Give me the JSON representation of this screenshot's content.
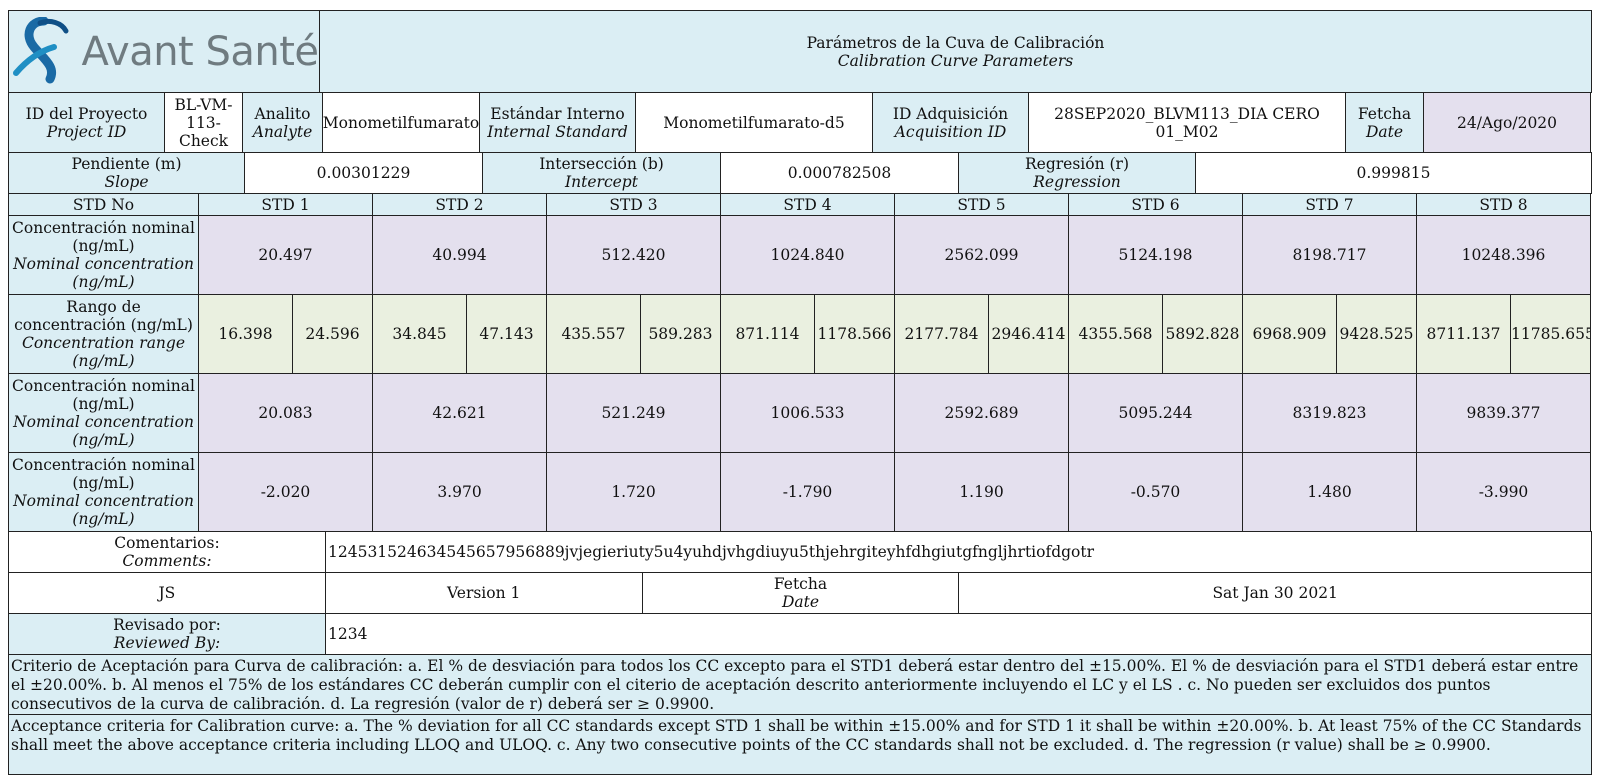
{
  "brand": {
    "logo_text": "Avant Santé",
    "logo_color": "#1a6aa5"
  },
  "title": {
    "es": "Parámetros de la Cuva de Calibración",
    "en": "Calibration Curve Parameters"
  },
  "info": {
    "project_label_es": "ID del Proyecto",
    "project_label_en": "Project ID",
    "project_value": "BL-VM-113-Check",
    "analyte_label_es": "Analito",
    "analyte_label_en": "Analyte",
    "analyte_value": "Monometilfumarato",
    "is_label_es": "Estándar Interno",
    "is_label_en": "Internal Standard",
    "is_value": "Monometilfumarato-d5",
    "acq_label_es": "ID Adquisición",
    "acq_label_en": "Acquisition ID",
    "acq_value": "28SEP2020_BLVM113_DIA CERO 01_M02",
    "date_label_es": "Fetcha",
    "date_label_en": "Date",
    "date_value": "24/Ago/2020"
  },
  "regression": {
    "slope_label_es": "Pendiente (m)",
    "slope_label_en": "Slope",
    "slope_value": "0.00301229",
    "intercept_label_es": "Intersección (b)",
    "intercept_label_en": "Intercept",
    "intercept_value": "0.000782508",
    "reg_label_es": "Regresión (r)",
    "reg_label_en": "Regression",
    "reg_value": "0.999815"
  },
  "std_header": {
    "label": "STD No",
    "names": [
      "STD 1",
      "STD 2",
      "STD 3",
      "STD 4",
      "STD 5",
      "STD 6",
      "STD 7",
      "STD 8"
    ]
  },
  "nominal": {
    "label_es": "Concentración nominal (ng/mL)",
    "label_en": "Nominal concentration (ng/mL)",
    "values": [
      "20.497",
      "40.994",
      "512.420",
      "1024.840",
      "2562.099",
      "5124.198",
      "8198.717",
      "10248.396"
    ]
  },
  "range": {
    "label_es": "Rango de concentración (ng/mL)",
    "label_en": "Concentration range (ng/mL)",
    "pairs": [
      [
        "16.398",
        "24.596"
      ],
      [
        "34.845",
        "47.143"
      ],
      [
        "435.557",
        "589.283"
      ],
      [
        "871.114",
        "1178.566"
      ],
      [
        "2177.784",
        "2946.414"
      ],
      [
        "4355.568",
        "5892.828"
      ],
      [
        "6968.909",
        "9428.525"
      ],
      [
        "8711.137",
        "11785.655"
      ]
    ]
  },
  "calculated": {
    "label_es": "Concentración nominal (ng/mL)",
    "label_en": "Nominal concentration (ng/mL)",
    "values": [
      "20.083",
      "42.621",
      "521.249",
      "1006.533",
      "2592.689",
      "5095.244",
      "8319.823",
      "9839.377"
    ]
  },
  "deviation": {
    "label_es": "Concentración nominal (ng/mL)",
    "label_en": "Nominal concentration (ng/mL)",
    "values": [
      "-2.020",
      "3.970",
      "1.720",
      "-1.790",
      "1.190",
      "-0.570",
      "1.480",
      "-3.990"
    ]
  },
  "comments": {
    "label_es": "Comentarios:",
    "label_en": "Comments:",
    "value": "124531524634545657956889jvjegieriuty5u4yuhdjvhgdiuyu5thjehrgiteyhfdhgiutgfngljhrtiofdgotr"
  },
  "signoff": {
    "initials": "JS",
    "version": "Version 1",
    "date_label_es": "Fetcha",
    "date_label_en": "Date",
    "date_value": "Sat Jan 30 2021"
  },
  "reviewed": {
    "label_es": "Revisado por:",
    "label_en": "Reviewed By:",
    "value": "1234"
  },
  "criteria": {
    "es": "Criterio de Aceptación para Curva de calibración: a. El % de desviación para todos los CC excepto para el STD1 deberá estar dentro del ±15.00%. El % de desviación para el STD1 deberá estar entre el ±20.00%. b. Al menos el 75% de los estándares CC deberán cumplir con el citerio de aceptación descrito anteriormente incluyendo el LC y el LS . c. No pueden ser excluidos dos puntos consecutivos de la curva de calibración. d. La regresión (valor de r) deberá ser ≥ 0.9900.",
    "en": "Acceptance criteria for Calibration curve: a. The % deviation for all CC standards except STD 1 shall be within ±15.00% and for STD 1 it shall be within ±20.00%. b. At least 75% of the CC Standards shall meet the above acceptance criteria including LLOQ and ULOQ. c. Any two consecutive points of the CC standards shall not be excluded. d. The regression (r value) shall be ≥ 0.9900."
  }
}
